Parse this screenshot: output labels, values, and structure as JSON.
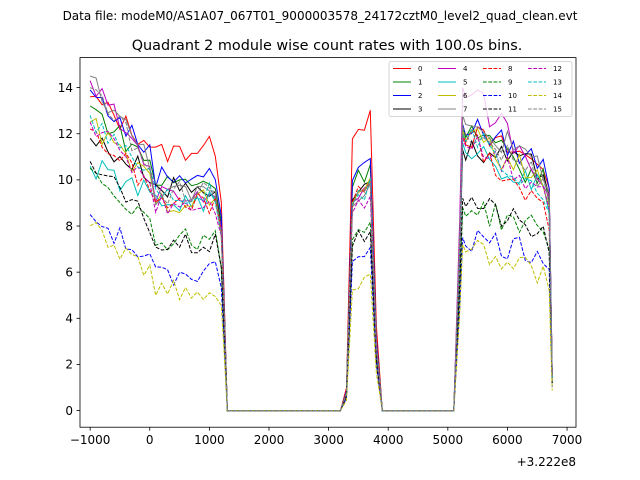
{
  "chart_data": {
    "type": "line",
    "suptitle": "Data file: modeM0/AS1A07_067T01_9000003578_24172cztM0_level2_quad_clean.evt",
    "title": "Quadrant 2 module wise count rates with 100.0s bins.",
    "xlabel": "",
    "ylabel": "",
    "x_offset_label": "+3.222e8",
    "xlim": [
      -1170,
      7150
    ],
    "ylim": [
      -0.72,
      15.3
    ],
    "xticks": [
      -1000,
      0,
      1000,
      2000,
      3000,
      4000,
      5000,
      6000,
      7000
    ],
    "xtick_labels": [
      "−1000",
      "0",
      "1000",
      "2000",
      "3000",
      "4000",
      "5000",
      "6000",
      "7000"
    ],
    "yticks": [
      0,
      2,
      4,
      6,
      8,
      10,
      12,
      14
    ],
    "ytick_labels": [
      "0",
      "2",
      "4",
      "6",
      "8",
      "10",
      "12",
      "14"
    ],
    "grid": false,
    "legend_position": "top-right",
    "legend_columns": 4,
    "segments": [
      {
        "start": -1000,
        "end": 1300,
        "points": 24
      },
      {
        "start": 3200,
        "end": 3800,
        "points": 7
      },
      {
        "start": 5100,
        "end": 6750,
        "points": 17
      }
    ],
    "series": [
      {
        "name": "0",
        "color": "#ff0000",
        "dash": "solid",
        "levels": [
          13.6,
          10.8,
          12.4,
          10.5,
          12.0,
          10.7
        ]
      },
      {
        "name": "1",
        "color": "#008000",
        "dash": "solid",
        "levels": [
          13.2,
          9.8,
          10.2,
          9.5,
          12.3,
          9.9
        ]
      },
      {
        "name": "2",
        "color": "#0000ff",
        "dash": "solid",
        "levels": [
          13.9,
          10.1,
          10.5,
          9.8,
          12.4,
          10.7
        ]
      },
      {
        "name": "3",
        "color": "#000000",
        "dash": "solid",
        "levels": [
          11.8,
          9.7,
          9.6,
          9.2,
          11.3,
          10.4
        ]
      },
      {
        "name": "4",
        "color": "#bf00bf",
        "dash": "solid",
        "levels": [
          14.3,
          9.3,
          9.5,
          9.2,
          14.0,
          10.3
        ]
      },
      {
        "name": "5",
        "color": "#00bfbf",
        "dash": "solid",
        "levels": [
          10.6,
          8.9,
          9.4,
          9.0,
          11.6,
          9.5
        ]
      },
      {
        "name": "6",
        "color": "#bfbf00",
        "dash": "solid",
        "levels": [
          12.5,
          8.9,
          9.5,
          8.8,
          12.1,
          9.8
        ]
      },
      {
        "name": "7",
        "color": "#808080",
        "dash": "solid",
        "levels": [
          14.5,
          9.4,
          9.3,
          8.9,
          12.8,
          10.5
        ]
      },
      {
        "name": "8",
        "color": "#ff0000",
        "dash": "dashed",
        "levels": [
          12.2,
          8.7,
          9.5,
          9.0,
          12.0,
          8.7
        ]
      },
      {
        "name": "9",
        "color": "#008000",
        "dash": "dashed",
        "levels": [
          10.5,
          7.3,
          7.8,
          7.2,
          8.8,
          7.8
        ]
      },
      {
        "name": "10",
        "color": "#0000ff",
        "dash": "dashed",
        "levels": [
          8.5,
          5.6,
          6.8,
          6.2,
          7.5,
          6.8
        ]
      },
      {
        "name": "11",
        "color": "#000000",
        "dash": "dashed",
        "levels": [
          10.8,
          7.0,
          7.5,
          7.2,
          9.2,
          7.6
        ]
      },
      {
        "name": "12",
        "color": "#bf00bf",
        "dash": "dashed",
        "levels": [
          12.5,
          9.0,
          9.0,
          8.8,
          11.8,
          9.7
        ]
      },
      {
        "name": "13",
        "color": "#00bfbf",
        "dash": "dashed",
        "levels": [
          12.8,
          9.4,
          9.4,
          8.9,
          12.0,
          9.5
        ]
      },
      {
        "name": "14",
        "color": "#bfbf00",
        "dash": "dashed",
        "levels": [
          8.0,
          5.1,
          5.5,
          5.3,
          7.2,
          5.8
        ]
      },
      {
        "name": "15",
        "color": "#808080",
        "dash": "dashed",
        "levels": [
          14.0,
          9.5,
          9.3,
          9.0,
          12.3,
          10.0
        ]
      }
    ]
  }
}
